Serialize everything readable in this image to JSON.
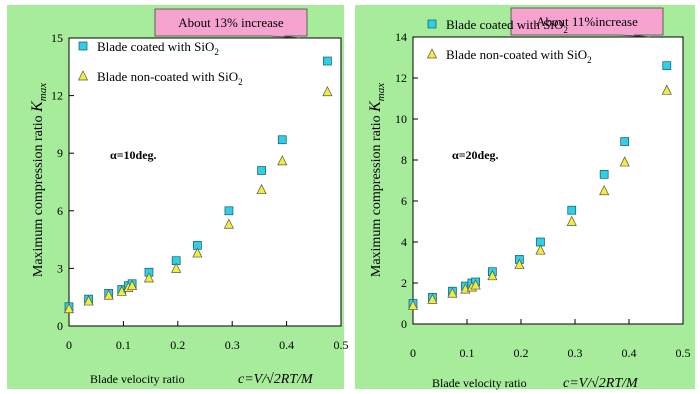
{
  "colors": {
    "background": "#a6ec9a",
    "plot_area": "#ffffff",
    "coated": "#2ed0e6",
    "noncoated": "#f2ec3a",
    "callout": "#f6a4cf"
  },
  "chart_data": [
    {
      "type": "scatter",
      "xlabel": "Blade velocity ratio",
      "xlabel_formula": "c=V/√2RT/M",
      "ylabel": "Maximum compression ratio",
      "ylabel_symbol": "K",
      "ylabel_sub": "max",
      "xlim": [
        0,
        0.5
      ],
      "ylim": [
        0,
        15
      ],
      "xticks": [
        0,
        0.1,
        0.2,
        0.3,
        0.4,
        0.5
      ],
      "xtick_labels": [
        "0",
        "0.1",
        "0.2",
        "0.3",
        "0.4",
        "0.5"
      ],
      "yticks": [
        0,
        3,
        6,
        9,
        12,
        15
      ],
      "ytick_labels": [
        "0",
        "3",
        "6",
        "9",
        "12",
        "15"
      ],
      "annotation": "α=10deg.",
      "callout": "About 13% increase",
      "legend_placement": "top-left",
      "series": [
        {
          "name": "Blade coated with SiO",
          "name_sub": "2",
          "marker": "square",
          "x": [
            0.0,
            0.036,
            0.073,
            0.097,
            0.109,
            0.116,
            0.147,
            0.197,
            0.236,
            0.294,
            0.354,
            0.392,
            0.475
          ],
          "y": [
            1.0,
            1.4,
            1.7,
            1.9,
            2.1,
            2.2,
            2.8,
            3.4,
            4.2,
            6.0,
            8.1,
            9.7,
            13.8
          ]
        },
        {
          "name": "Blade non-coated with SiO",
          "name_sub": "2",
          "marker": "triangle",
          "x": [
            0.0,
            0.036,
            0.073,
            0.097,
            0.109,
            0.116,
            0.147,
            0.197,
            0.236,
            0.294,
            0.354,
            0.392,
            0.475
          ],
          "y": [
            0.9,
            1.3,
            1.6,
            1.8,
            2.0,
            2.1,
            2.5,
            3.0,
            3.8,
            5.3,
            7.1,
            8.6,
            12.2
          ]
        }
      ]
    },
    {
      "type": "scatter",
      "xlabel": "Blade velocity ratio",
      "xlabel_formula": "c=V/√2RT/M",
      "ylabel": "Maximum compression ratio",
      "ylabel_symbol": "K",
      "ylabel_sub": "max",
      "xlim": [
        0,
        0.5
      ],
      "ylim": [
        0,
        14
      ],
      "xticks": [
        0,
        0.1,
        0.2,
        0.3,
        0.4,
        0.5
      ],
      "xtick_labels": [
        "0",
        "0.1",
        "0.2",
        "0.3",
        "0.4",
        "0.5"
      ],
      "yticks": [
        0,
        2,
        4,
        6,
        8,
        10,
        12,
        14
      ],
      "ytick_labels": [
        "0",
        "2",
        "4",
        "6",
        "8",
        "10",
        "12",
        "14"
      ],
      "annotation": "α=20deg.",
      "callout": "About 11%increase",
      "legend_placement": "top-left",
      "series": [
        {
          "name": "Blade coated with SiO",
          "name_sub": "2",
          "marker": "square",
          "x": [
            0.0,
            0.036,
            0.073,
            0.097,
            0.109,
            0.116,
            0.147,
            0.197,
            0.236,
            0.294,
            0.354,
            0.392,
            0.47
          ],
          "y": [
            1.0,
            1.3,
            1.6,
            1.85,
            2.0,
            2.05,
            2.55,
            3.15,
            4.0,
            5.55,
            7.3,
            8.9,
            12.6
          ]
        },
        {
          "name": "Blade non-coated with SiO",
          "name_sub": "2",
          "marker": "triangle",
          "x": [
            0.0,
            0.036,
            0.073,
            0.097,
            0.109,
            0.116,
            0.147,
            0.197,
            0.236,
            0.294,
            0.354,
            0.392,
            0.47
          ],
          "y": [
            0.9,
            1.2,
            1.5,
            1.7,
            1.8,
            1.9,
            2.35,
            2.9,
            3.6,
            5.0,
            6.5,
            7.9,
            11.4
          ]
        }
      ]
    }
  ]
}
